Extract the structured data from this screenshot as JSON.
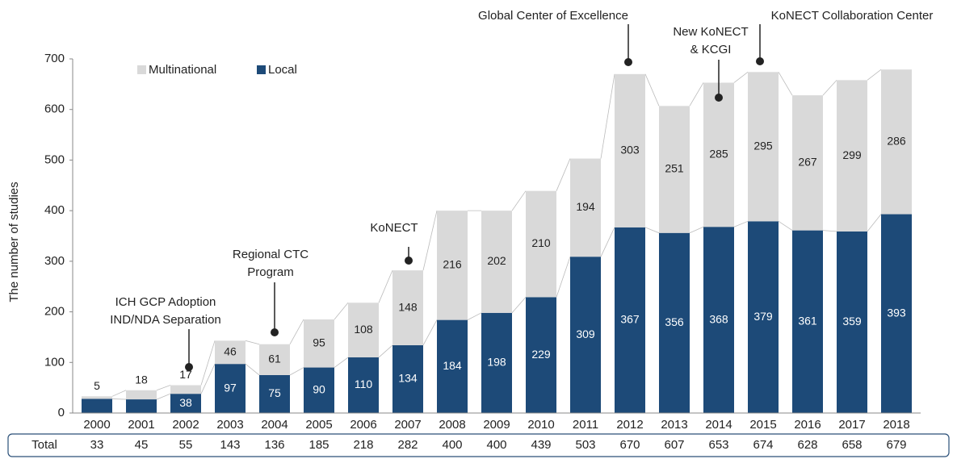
{
  "chart_data": {
    "type": "stacked_bar",
    "y_label": "The number of studies",
    "categories": [
      "2000",
      "2001",
      "2002",
      "2003",
      "2004",
      "2005",
      "2006",
      "2007",
      "2008",
      "2009",
      "2010",
      "2011",
      "2012",
      "2013",
      "2014",
      "2015",
      "2016",
      "2017",
      "2018"
    ],
    "series": [
      {
        "name": "Local",
        "color": "#1d4a78",
        "values": [
          28,
          27,
          38,
          97,
          75,
          90,
          110,
          134,
          184,
          198,
          229,
          309,
          367,
          356,
          368,
          379,
          361,
          359,
          393
        ]
      },
      {
        "name": "Multinational",
        "color": "#d9d9d9",
        "values": [
          5,
          18,
          17,
          46,
          61,
          95,
          108,
          148,
          216,
          202,
          210,
          194,
          303,
          251,
          285,
          295,
          267,
          299,
          286
        ]
      }
    ],
    "ylim": [
      0,
      700
    ],
    "yticks": [
      0,
      100,
      200,
      300,
      400,
      500,
      600,
      700
    ],
    "totals_label": "Total",
    "totals": [
      33,
      45,
      55,
      143,
      136,
      185,
      218,
      282,
      400,
      400,
      439,
      503,
      670,
      607,
      653,
      674,
      628,
      658,
      679
    ],
    "annotations": [
      {
        "lines": [
          "ICH GCP Adoption",
          "IND/NDA Separation"
        ]
      },
      {
        "lines": [
          "Regional CTC",
          "Program"
        ]
      },
      {
        "lines": [
          "KoNECT"
        ]
      },
      {
        "lines": [
          "Global Center of Excellence"
        ]
      },
      {
        "lines": [
          "New KoNECT",
          "& KCGI"
        ]
      },
      {
        "lines": [
          "KoNECT Collaboration Center"
        ]
      }
    ]
  }
}
